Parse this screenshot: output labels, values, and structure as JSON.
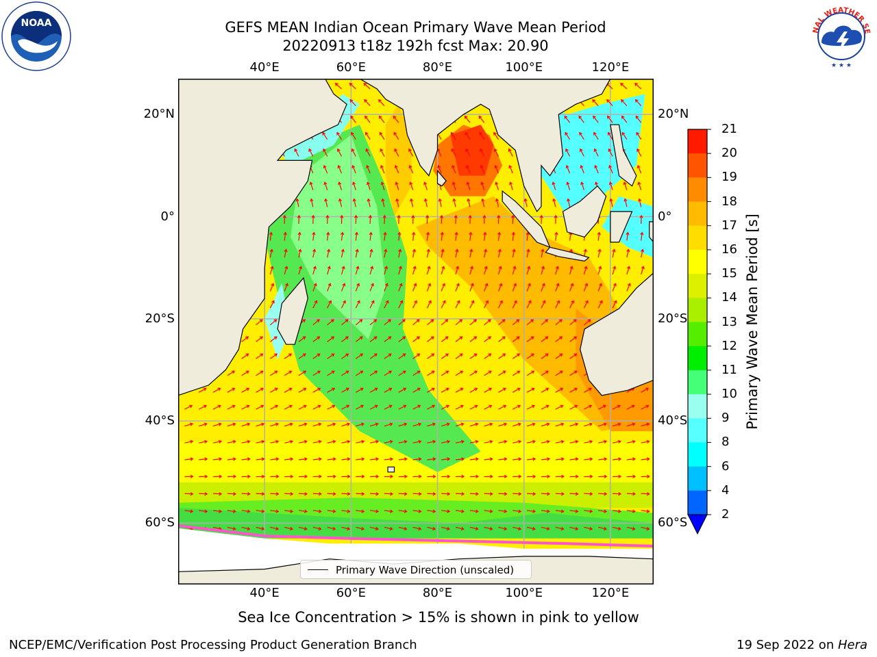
{
  "title": {
    "line1": "GEFS MEAN Indian Ocean Primary Wave Mean Period",
    "line2": "20220913 t18z 192h fcst   Max: 20.90"
  },
  "logos": {
    "noaa": {
      "text": "NOAA",
      "ring_text": "NATIONAL OCEANIC AND ATMOSPHERIC ADMINISTRATION · U.S. DEPARTMENT OF COMMERCE"
    },
    "nws": {
      "ring_text": "NATIONAL WEATHER SERVICE"
    }
  },
  "map": {
    "projection": "cylindrical",
    "lon_range": [
      20,
      130
    ],
    "lat_range": [
      -72,
      27
    ],
    "lon_ticks": [
      {
        "value": 40,
        "label": "40°E"
      },
      {
        "value": 60,
        "label": "60°E"
      },
      {
        "value": 80,
        "label": "80°E"
      },
      {
        "value": 100,
        "label": "100°E"
      },
      {
        "value": 120,
        "label": "120°E"
      }
    ],
    "lat_ticks": [
      {
        "value": 20,
        "label": "20°N"
      },
      {
        "value": 0,
        "label": "0°"
      },
      {
        "value": -20,
        "label": "20°S"
      },
      {
        "value": -40,
        "label": "40°S"
      },
      {
        "value": -60,
        "label": "60°S"
      }
    ],
    "grid": true,
    "land_color": "#efecdc",
    "arrow_color": "#ff0000"
  },
  "chart_data": {
    "type": "heatmap",
    "title": "GEFS MEAN Indian Ocean Primary Wave Mean Period",
    "subtitle": "20220913 t18z 192h fcst   Max: 20.90",
    "max_value": 20.9,
    "colorbar": {
      "label": "Primary Wave Mean Period [s]",
      "levels": [
        2,
        4,
        6,
        8,
        9,
        10,
        11,
        12,
        13,
        14,
        15,
        16,
        17,
        18,
        19,
        20,
        21
      ],
      "tick_labels": [
        "2",
        "4",
        "6",
        "8",
        "9",
        "10",
        "11",
        "12",
        "13",
        "14",
        "15",
        "16",
        "17",
        "18",
        "19",
        "20",
        "21"
      ],
      "colors": [
        "#0066ff",
        "#00bfff",
        "#00ffff",
        "#55ffff",
        "#99ffee",
        "#44ff77",
        "#00ee00",
        "#55ee00",
        "#aaee00",
        "#ddf000",
        "#ffff00",
        "#ffdd00",
        "#ffbb00",
        "#ff8c00",
        "#ff5500",
        "#ff1a00"
      ],
      "extend": "min",
      "extend_color": "#0000ff"
    },
    "legend": "Primary Wave Direction (unscaled)",
    "legend_placement": "bottom-center"
  },
  "notes": {
    "sea_ice": "Sea Ice Concentration > 15% is shown in pink to yellow"
  },
  "footer": {
    "left": "NCEP/EMC/Verification Post Processing Product Generation Branch",
    "date": "19 Sep 2022 on ",
    "machine": "Hera"
  }
}
